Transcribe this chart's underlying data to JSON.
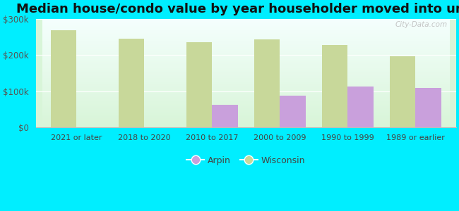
{
  "title": "Median house/condo value by year householder moved into unit",
  "categories": [
    "2021 or later",
    "2018 to 2020",
    "2010 to 2017",
    "2000 to 2009",
    "1990 to 1999",
    "1989 or earlier"
  ],
  "arpin_values": [
    0,
    0,
    62000,
    88000,
    112000,
    108000
  ],
  "wisconsin_values": [
    268000,
    245000,
    235000,
    242000,
    228000,
    196000
  ],
  "arpin_color": "#c9a0dc",
  "wisconsin_color": "#c8d89a",
  "background_color": "#00eeff",
  "plot_bg_top": "#f5fffe",
  "plot_bg_bottom": "#d8f5d8",
  "ylim": [
    0,
    300000
  ],
  "ytick_labels": [
    "$0",
    "$100k",
    "$200k",
    "$300k"
  ],
  "title_fontsize": 13,
  "watermark": "City-Data.com",
  "bar_width": 0.38
}
